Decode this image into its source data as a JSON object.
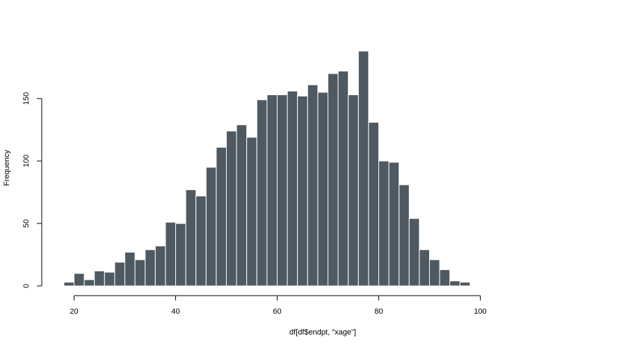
{
  "chart_data": {
    "type": "bar",
    "title": "",
    "xlabel": "df[df$endpt, \"xage\"]",
    "ylabel": "Frequency",
    "bin_width": 2,
    "x_start": 18,
    "xlim": [
      18,
      100
    ],
    "ylim": [
      0,
      190
    ],
    "x_ticks": [
      "20",
      "40",
      "60",
      "80",
      "100"
    ],
    "y_ticks": [
      "0",
      "50",
      "100",
      "150"
    ],
    "values": [
      3,
      10,
      5,
      12,
      11,
      19,
      27,
      21,
      29,
      32,
      51,
      50,
      77,
      72,
      95,
      111,
      124,
      129,
      119,
      149,
      153,
      153,
      156,
      152,
      161,
      155,
      170,
      172,
      153,
      188,
      131,
      100,
      99,
      81,
      54,
      29,
      21,
      13,
      4,
      3
    ],
    "bar_color": "#4f5961",
    "bar_edge_color": "#ffffff",
    "grid": false,
    "legend": "none"
  }
}
